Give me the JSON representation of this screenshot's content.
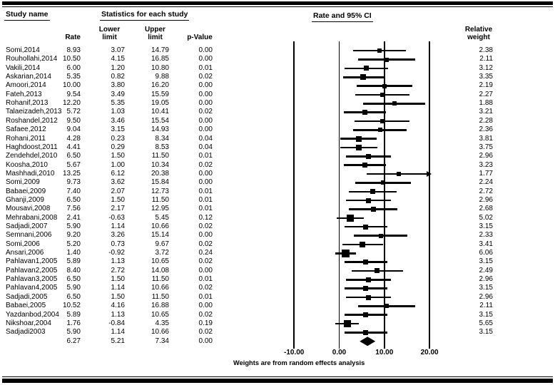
{
  "header": {
    "study_col_title": "Study name",
    "stats_title": "Statistics for each study",
    "plot_title": "Rate and 95% CI",
    "rate_label": "Rate",
    "lower_line1": "Lower",
    "lower_line2": "limit",
    "upper_line1": "Upper",
    "upper_line2": "limit",
    "p_label": "p-Value",
    "weight_line1": "Relative",
    "weight_line2": "weight"
  },
  "chart_data": {
    "type": "forest",
    "title": "Rate and 95% CI",
    "xlim": [
      -10,
      20
    ],
    "ticks": [
      -10,
      0,
      10,
      20
    ],
    "tick_labels": [
      "-10.00",
      "0.00",
      "10.00",
      "20.00"
    ],
    "footnote": "Weights are from random effects analysis",
    "studies": [
      {
        "name": "Somi,2014",
        "rate": "8.93",
        "lower": "3.07",
        "upper": "14.79",
        "p": "0.00",
        "weight": "2.38"
      },
      {
        "name": "Rouhollahi,2014",
        "rate": "10.50",
        "lower": "4.15",
        "upper": "16.85",
        "p": "0.00",
        "weight": "2.11"
      },
      {
        "name": "Vakili,2014",
        "rate": "6.00",
        "lower": "1.20",
        "upper": "10.80",
        "p": "0.01",
        "weight": "3.12"
      },
      {
        "name": "Askarian,2014",
        "rate": "5.35",
        "lower": "0.82",
        "upper": "9.88",
        "p": "0.02",
        "weight": "3.35"
      },
      {
        "name": "Amoori,2014",
        "rate": "10.00",
        "lower": "3.80",
        "upper": "16.20",
        "p": "0.00",
        "weight": "2.19"
      },
      {
        "name": "Fateh,2013",
        "rate": "9.54",
        "lower": "3.49",
        "upper": "15.59",
        "p": "0.00",
        "weight": "2.27"
      },
      {
        "name": "Rohanif,2013",
        "rate": "12.20",
        "lower": "5.35",
        "upper": "19.05",
        "p": "0.00",
        "weight": "1.88"
      },
      {
        "name": "Talaeizadeh,2013",
        "rate": "5.72",
        "lower": "1.03",
        "upper": "10.41",
        "p": "0.02",
        "weight": "3.21"
      },
      {
        "name": "Roshandel,2012",
        "rate": "9.50",
        "lower": "3.46",
        "upper": "15.54",
        "p": "0.00",
        "weight": "2.28"
      },
      {
        "name": "Safaee,2012",
        "rate": "9.04",
        "lower": "3.15",
        "upper": "14.93",
        "p": "0.00",
        "weight": "2.36"
      },
      {
        "name": "Rohani,2011",
        "rate": "4.28",
        "lower": "0.23",
        "upper": "8.34",
        "p": "0.04",
        "weight": "3.81"
      },
      {
        "name": "Haghdoost,2011",
        "rate": "4.41",
        "lower": "0.29",
        "upper": "8.53",
        "p": "0.04",
        "weight": "3.75"
      },
      {
        "name": "Zendehdel,2010",
        "rate": "6.50",
        "lower": "1.50",
        "upper": "11.50",
        "p": "0.01",
        "weight": "2.96"
      },
      {
        "name": "Koosha,2010",
        "rate": "5.67",
        "lower": "1.00",
        "upper": "10.34",
        "p": "0.02",
        "weight": "3.23"
      },
      {
        "name": "Mashhadi,2010",
        "rate": "13.25",
        "lower": "6.12",
        "upper": "20.38",
        "p": "0.00",
        "weight": "1.77"
      },
      {
        "name": "Somi,2009",
        "rate": "9.73",
        "lower": "3.62",
        "upper": "15.84",
        "p": "0.00",
        "weight": "2.24"
      },
      {
        "name": "Babaei,2009",
        "rate": "7.40",
        "lower": "2.07",
        "upper": "12.73",
        "p": "0.01",
        "weight": "2.72"
      },
      {
        "name": "Ghanji,2009",
        "rate": "6.50",
        "lower": "1.50",
        "upper": "11.50",
        "p": "0.01",
        "weight": "2.96"
      },
      {
        "name": "Mousavi,2008",
        "rate": "7.56",
        "lower": "2.17",
        "upper": "12.95",
        "p": "0.01",
        "weight": "2.68"
      },
      {
        "name": "Mehrabani,2008",
        "rate": "2.41",
        "lower": "-0.63",
        "upper": "5.45",
        "p": "0.12",
        "weight": "5.02"
      },
      {
        "name": "Sadjadi,2007",
        "rate": "5.90",
        "lower": "1.14",
        "upper": "10.66",
        "p": "0.02",
        "weight": "3.15"
      },
      {
        "name": "Semnani,2006",
        "rate": "9.20",
        "lower": "3.26",
        "upper": "15.14",
        "p": "0.00",
        "weight": "2.33"
      },
      {
        "name": "Somi,2006",
        "rate": "5.20",
        "lower": "0.73",
        "upper": "9.67",
        "p": "0.02",
        "weight": "3.41"
      },
      {
        "name": "Ansari,2006",
        "rate": "1.40",
        "lower": "-0.92",
        "upper": "3.72",
        "p": "0.24",
        "weight": "6.06"
      },
      {
        "name": "Pahlavan1,2005",
        "rate": "5.89",
        "lower": "1.13",
        "upper": "10.65",
        "p": "0.02",
        "weight": "3.15"
      },
      {
        "name": "Pahlavan2,2005",
        "rate": "8.40",
        "lower": "2.72",
        "upper": "14.08",
        "p": "0.00",
        "weight": "2.49"
      },
      {
        "name": "Pahlavan3,2005",
        "rate": "6.50",
        "lower": "1.50",
        "upper": "11.50",
        "p": "0.01",
        "weight": "2.96"
      },
      {
        "name": "Pahlavan4,2005",
        "rate": "5.90",
        "lower": "1.14",
        "upper": "10.66",
        "p": "0.02",
        "weight": "3.15"
      },
      {
        "name": "Sadjadi,2005",
        "rate": "6.50",
        "lower": "1.50",
        "upper": "11.50",
        "p": "0.01",
        "weight": "2.96"
      },
      {
        "name": "Babaei,2005",
        "rate": "10.52",
        "lower": "4.16",
        "upper": "16.88",
        "p": "0.00",
        "weight": "2.11"
      },
      {
        "name": "Yazdanbod,2004",
        "rate": "5.89",
        "lower": "1.13",
        "upper": "10.65",
        "p": "0.02",
        "weight": "3.15"
      },
      {
        "name": "Nikshoar,2004",
        "rate": "1.76",
        "lower": "-0.84",
        "upper": "4.35",
        "p": "0.19",
        "weight": "5.65"
      },
      {
        "name": "Sadjadi2003",
        "rate": "5.90",
        "lower": "1.14",
        "upper": "10.66",
        "p": "0.02",
        "weight": "3.15"
      }
    ],
    "overall": {
      "rate": "6.27",
      "lower": "5.21",
      "upper": "7.34",
      "p": "0.00"
    }
  }
}
